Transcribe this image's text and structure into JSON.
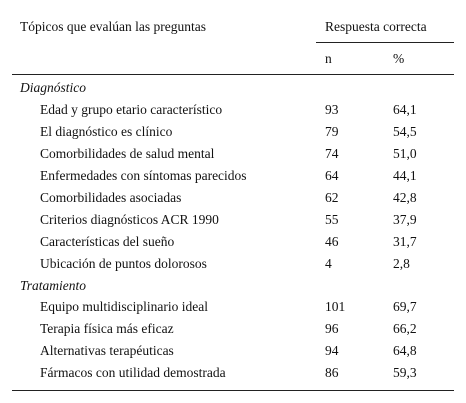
{
  "table": {
    "header": {
      "topic": "Tópicos que evalúan las preguntas",
      "response": "Respuesta correcta",
      "n": "n",
      "pct": "%"
    },
    "sections": [
      {
        "title": "Diagnóstico",
        "rows": [
          [
            "Edad y grupo etario característico",
            "93",
            "64,1"
          ],
          [
            "El diagnóstico es clínico",
            "79",
            "54,5"
          ],
          [
            "Comorbilidades de salud mental",
            "74",
            "51,0"
          ],
          [
            "Enfermedades con síntomas parecidos",
            "64",
            "44,1"
          ],
          [
            "Comorbilidades asociadas",
            "62",
            "42,8"
          ],
          [
            "Criterios diagnósticos ACR 1990",
            "55",
            "37,9"
          ],
          [
            "Características del sueño",
            "46",
            "31,7"
          ],
          [
            "Ubicación de puntos dolorosos",
            "4",
            "2,8"
          ]
        ]
      },
      {
        "title": "Tratamiento",
        "rows": [
          [
            "Equipo multidisciplinario ideal",
            "101",
            "69,7"
          ],
          [
            "Terapia física más eficaz",
            "96",
            "66,2"
          ],
          [
            "Alternativas terapéuticas",
            "94",
            "64,8"
          ],
          [
            "Fármacos con utilidad demostrada",
            "86",
            "59,3"
          ]
        ]
      }
    ]
  }
}
